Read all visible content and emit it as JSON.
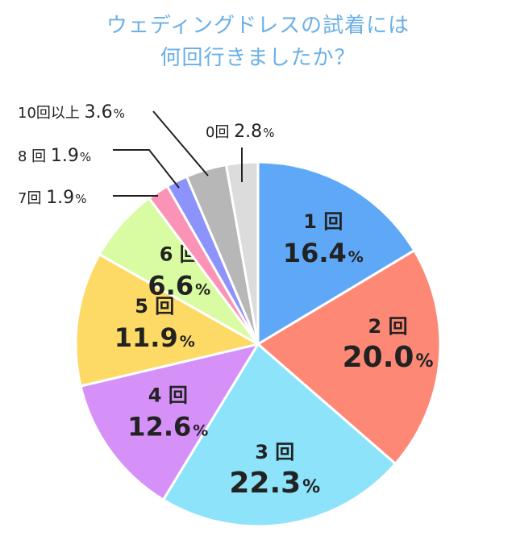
{
  "title_lines": [
    "ウェディングドレスの試着には",
    "何回行きましたか？"
  ],
  "chart_data": {
    "type": "pie",
    "title": "ウェディングドレスの試着には何回行きましたか？",
    "start": "12 o'clock, clockwise",
    "slices": [
      {
        "label": "1 回",
        "value": 16.4,
        "value_text": "16.4",
        "color": "#5fa8f7",
        "label_placement": "inside"
      },
      {
        "label": "2 回",
        "value": 20.0,
        "value_text": "20.0",
        "color": "#fc8875",
        "label_placement": "inside"
      },
      {
        "label": "3 回",
        "value": 22.3,
        "value_text": "22.3",
        "color": "#8de3fa",
        "label_placement": "inside"
      },
      {
        "label": "4 回",
        "value": 12.6,
        "value_text": "12.6",
        "color": "#d591f7",
        "label_placement": "inside"
      },
      {
        "label": "5 回",
        "value": 11.9,
        "value_text": "11.9",
        "color": "#fdda65",
        "label_placement": "inside"
      },
      {
        "label": "6 回",
        "value": 6.6,
        "value_text": "6.6",
        "color": "#d9fba2",
        "label_placement": "inside"
      },
      {
        "label": "7回",
        "value": 1.9,
        "value_text": "1.9",
        "color": "#fb93b7",
        "label_placement": "outside"
      },
      {
        "label": "8 回",
        "value": 1.9,
        "value_text": "1.9",
        "color": "#8c93fa",
        "label_placement": "outside"
      },
      {
        "label": "10回以上",
        "value": 3.6,
        "value_text": "3.6",
        "color": "#b7b7b7",
        "label_placement": "outside"
      },
      {
        "label": "0回",
        "value": 2.8,
        "value_text": "2.8",
        "color": "#dcdcdc",
        "label_placement": "outside"
      }
    ],
    "unit": "%"
  }
}
